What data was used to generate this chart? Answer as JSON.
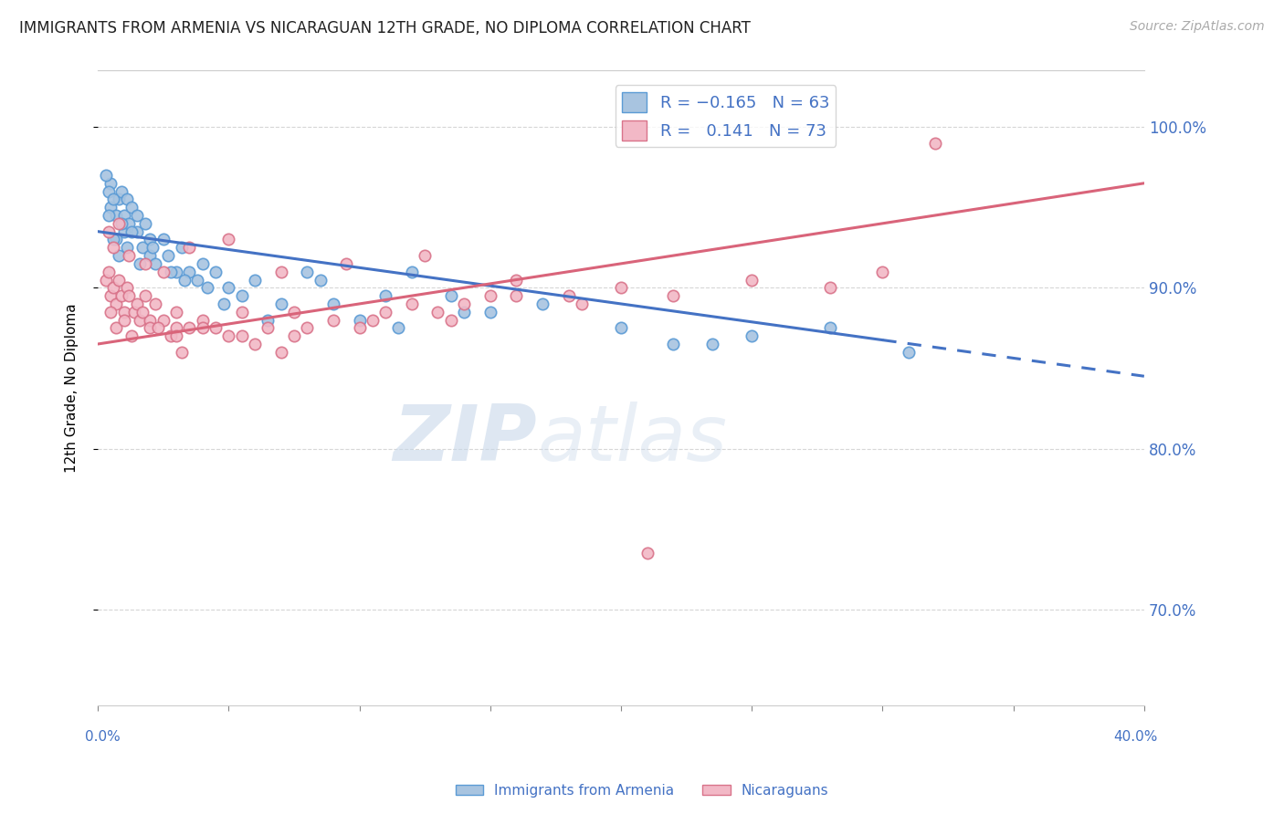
{
  "title": "IMMIGRANTS FROM ARMENIA VS NICARAGUAN 12TH GRADE, NO DIPLOMA CORRELATION CHART",
  "source": "Source: ZipAtlas.com",
  "ylabel": "12th Grade, No Diploma",
  "y_ticks": [
    70.0,
    80.0,
    90.0,
    100.0
  ],
  "xlim": [
    0.0,
    40.0
  ],
  "ylim": [
    64.0,
    103.5
  ],
  "blue_line_x0": 0.0,
  "blue_line_y0": 93.5,
  "blue_line_x1": 40.0,
  "blue_line_y1": 84.5,
  "blue_dash_start_x": 30.0,
  "pink_line_x0": 0.0,
  "pink_line_y0": 86.5,
  "pink_line_x1": 40.0,
  "pink_line_y1": 96.5,
  "blue_color": "#a8c4e0",
  "blue_edge": "#5b9bd5",
  "blue_line_color": "#4472c4",
  "pink_color": "#f2b8c6",
  "pink_edge": "#d9738a",
  "pink_line_color": "#d9647a",
  "watermark_zip": "ZIP",
  "watermark_atlas": "atlas",
  "background_color": "#ffffff",
  "grid_color": "#cccccc",
  "axis_label_color": "#4472c4",
  "title_fontsize": 12,
  "blue_x": [
    0.5,
    0.5,
    0.7,
    0.8,
    0.9,
    1.0,
    1.0,
    1.1,
    1.2,
    1.3,
    1.5,
    1.5,
    1.7,
    1.8,
    2.0,
    2.0,
    2.2,
    2.5,
    2.7,
    3.0,
    3.2,
    3.5,
    3.8,
    4.0,
    4.2,
    4.5,
    5.0,
    5.5,
    6.0,
    7.0,
    8.0,
    9.0,
    10.0,
    11.0,
    12.0,
    13.5,
    15.0,
    17.0,
    20.0,
    22.0,
    25.0,
    28.0,
    31.0,
    0.3,
    0.4,
    0.6,
    0.7,
    0.9,
    1.1,
    1.3,
    1.6,
    2.1,
    2.8,
    3.3,
    4.8,
    6.5,
    8.5,
    11.5,
    14.0,
    23.5,
    0.4,
    0.6,
    0.8
  ],
  "blue_y": [
    96.5,
    95.0,
    94.5,
    95.5,
    96.0,
    93.5,
    94.5,
    95.5,
    94.0,
    95.0,
    94.5,
    93.5,
    92.5,
    94.0,
    93.0,
    92.0,
    91.5,
    93.0,
    92.0,
    91.0,
    92.5,
    91.0,
    90.5,
    91.5,
    90.0,
    91.0,
    90.0,
    89.5,
    90.5,
    89.0,
    91.0,
    89.0,
    88.0,
    89.5,
    91.0,
    89.5,
    88.5,
    89.0,
    87.5,
    86.5,
    87.0,
    87.5,
    86.0,
    97.0,
    96.0,
    95.5,
    93.0,
    94.0,
    92.5,
    93.5,
    91.5,
    92.5,
    91.0,
    90.5,
    89.0,
    88.0,
    90.5,
    87.5,
    88.5,
    86.5,
    94.5,
    93.0,
    92.0
  ],
  "pink_x": [
    0.3,
    0.4,
    0.5,
    0.6,
    0.7,
    0.8,
    0.9,
    1.0,
    1.1,
    1.2,
    1.4,
    1.5,
    1.6,
    1.8,
    2.0,
    2.0,
    2.2,
    2.5,
    2.8,
    3.0,
    3.0,
    3.2,
    3.5,
    4.0,
    4.5,
    5.0,
    5.5,
    6.0,
    6.5,
    7.0,
    7.5,
    8.0,
    9.0,
    10.0,
    11.0,
    12.0,
    13.0,
    14.0,
    15.0,
    16.0,
    18.0,
    20.0,
    22.0,
    25.0,
    28.0,
    30.0,
    32.0,
    0.5,
    0.7,
    1.0,
    1.3,
    1.7,
    2.3,
    3.0,
    4.0,
    5.5,
    7.5,
    10.5,
    13.5,
    18.5,
    0.4,
    0.6,
    0.8,
    1.2,
    1.8,
    2.5,
    3.5,
    5.0,
    7.0,
    9.5,
    12.5,
    16.0,
    21.0
  ],
  "pink_y": [
    90.5,
    91.0,
    89.5,
    90.0,
    89.0,
    90.5,
    89.5,
    88.5,
    90.0,
    89.5,
    88.5,
    89.0,
    88.0,
    89.5,
    88.0,
    87.5,
    89.0,
    88.0,
    87.0,
    88.5,
    87.5,
    86.0,
    87.5,
    88.0,
    87.5,
    87.0,
    87.0,
    86.5,
    87.5,
    86.0,
    87.0,
    87.5,
    88.0,
    87.5,
    88.5,
    89.0,
    88.5,
    89.0,
    89.5,
    89.5,
    89.5,
    90.0,
    89.5,
    90.5,
    90.0,
    91.0,
    99.0,
    88.5,
    87.5,
    88.0,
    87.0,
    88.5,
    87.5,
    87.0,
    87.5,
    88.5,
    88.5,
    88.0,
    88.0,
    89.0,
    93.5,
    92.5,
    94.0,
    92.0,
    91.5,
    91.0,
    92.5,
    93.0,
    91.0,
    91.5,
    92.0,
    90.5,
    73.5
  ]
}
